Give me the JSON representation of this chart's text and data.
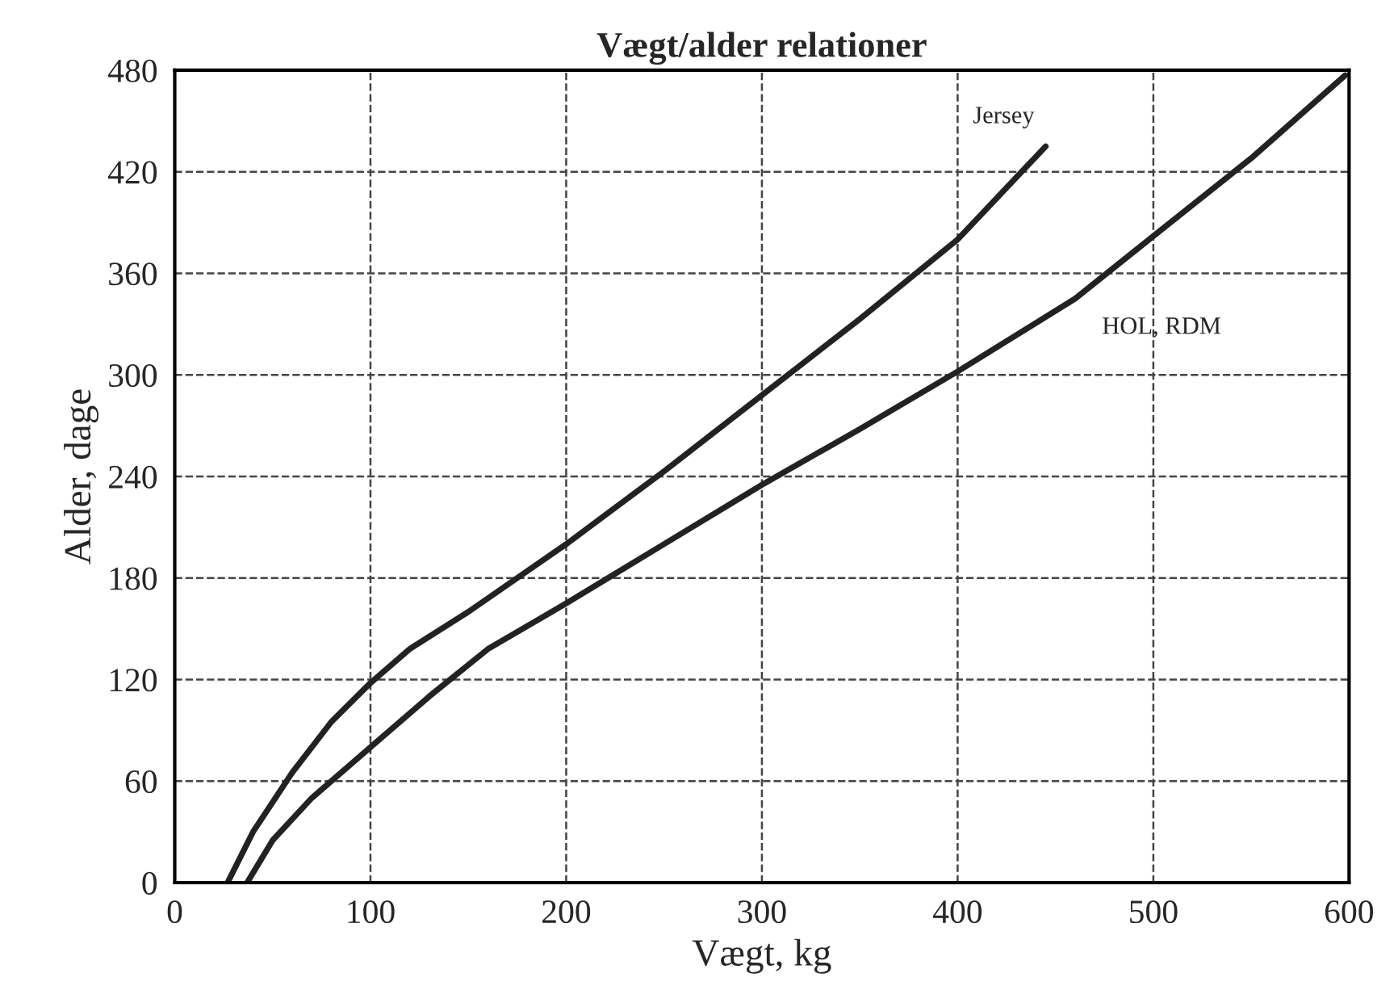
{
  "chart_data": {
    "type": "line",
    "title": "Vægt/alder relationer",
    "xlabel": "Vægt, kg",
    "ylabel": "Alder, dage",
    "series": [
      {
        "name": "Jersey",
        "color": "#222222",
        "x": [
          27,
          40,
          60,
          80,
          100,
          120,
          150,
          200,
          250,
          300,
          350,
          400,
          445
        ],
        "values": [
          0,
          30,
          65,
          95,
          118,
          138,
          160,
          200,
          243,
          288,
          333,
          380,
          435
        ]
      },
      {
        "name": "HOL, RDM",
        "color": "#222222",
        "x": [
          37,
          50,
          70,
          100,
          130,
          160,
          200,
          250,
          300,
          350,
          400,
          460,
          500,
          550,
          598
        ],
        "values": [
          0,
          25,
          50,
          80,
          110,
          138,
          165,
          200,
          235,
          268,
          302,
          345,
          382,
          428,
          477
        ]
      }
    ],
    "xlim": [
      0,
      600
    ],
    "ylim": [
      0,
      480
    ],
    "xticks": [
      0,
      100,
      200,
      300,
      400,
      500,
      600
    ],
    "yticks": [
      0,
      60,
      120,
      180,
      240,
      300,
      360,
      420,
      480
    ],
    "grid": true,
    "line_style": "solid",
    "marker": "none",
    "legend": false
  }
}
